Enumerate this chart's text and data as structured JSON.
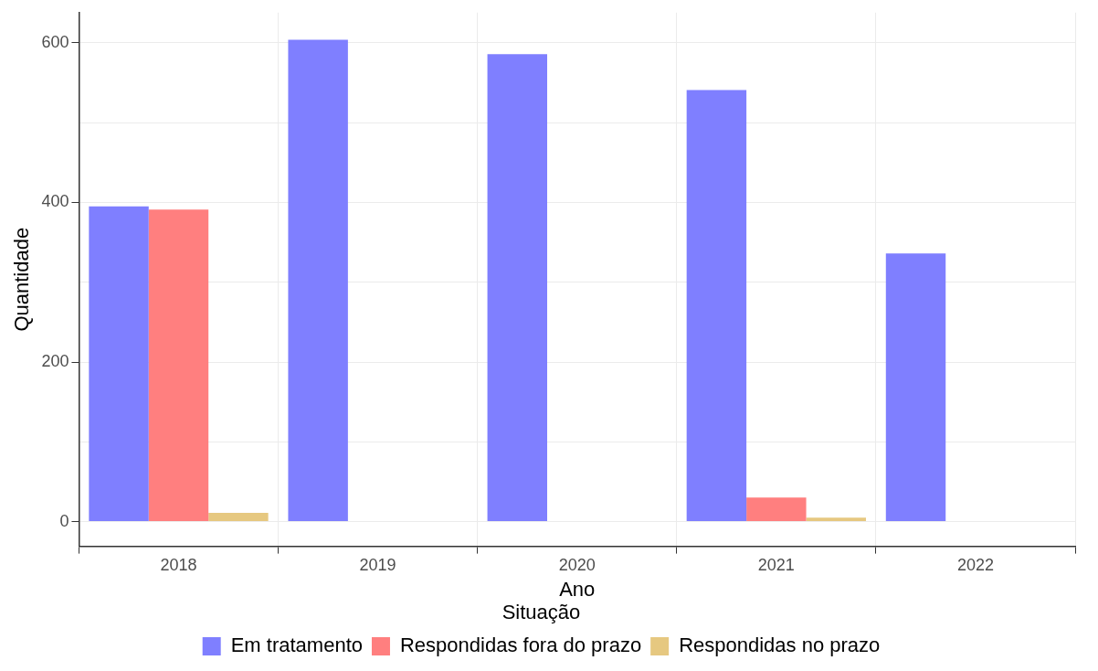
{
  "chart_data": {
    "type": "bar",
    "xlabel": "Ano",
    "ylabel": "Quantidade",
    "legend_title": "Situação",
    "categories": [
      "2018",
      "2019",
      "2020",
      "2021",
      "2022"
    ],
    "series": [
      {
        "name": "Em tratamento",
        "color": "#7f7fff",
        "values": [
          395,
          604,
          586,
          541,
          336
        ]
      },
      {
        "name": "Respondidas fora do prazo",
        "color": "#ff7f7f",
        "values": [
          391,
          null,
          null,
          30,
          null
        ]
      },
      {
        "name": "Respondidas no prazo",
        "color": "#e6c880",
        "values": [
          11,
          null,
          null,
          5,
          null
        ]
      }
    ],
    "ylim": [
      -31,
      638
    ],
    "yticks": [
      0,
      {
        "value": 100,
        "label": null
      },
      200,
      {
        "value": 300,
        "label": null
      },
      400,
      {
        "value": 500,
        "label": null
      },
      600
    ],
    "grid": true,
    "legend": "bottom"
  }
}
